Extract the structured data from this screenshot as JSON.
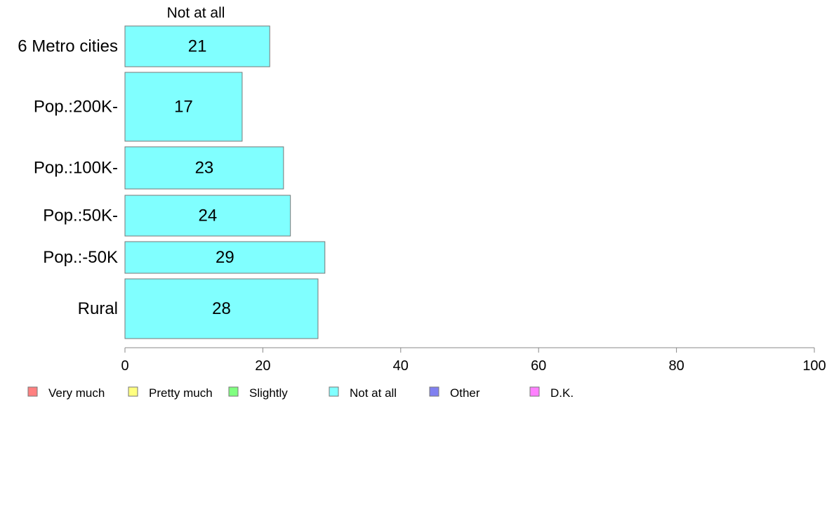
{
  "chart_data": {
    "type": "bar",
    "orientation": "horizontal",
    "stacked": true,
    "series_header": "Not at all",
    "categories": [
      "6 Metro cities",
      "Pop.:200K-",
      "Pop.:100K-",
      "Pop.:50K-",
      "Pop.:-50K",
      "Rural"
    ],
    "series": [
      {
        "name": "Very much",
        "values": [
          0,
          0,
          0,
          0,
          0,
          0
        ],
        "color": "#ff8080"
      },
      {
        "name": "Pretty much",
        "values": [
          0,
          0,
          0,
          0,
          0,
          0
        ],
        "color": "#ffff80"
      },
      {
        "name": "Slightly",
        "values": [
          0,
          0,
          0,
          0,
          0,
          0
        ],
        "color": "#80ff80"
      },
      {
        "name": "Not at all",
        "values": [
          21,
          17,
          23,
          24,
          29,
          28
        ],
        "color": "#80ffff"
      },
      {
        "name": "Other",
        "values": [
          0,
          0,
          0,
          0,
          0,
          0
        ],
        "color": "#8080f0"
      },
      {
        "name": "D.K.",
        "values": [
          0,
          0,
          0,
          0,
          0,
          0
        ],
        "color": "#ff80ff"
      }
    ],
    "data_labels": [
      "21",
      "17",
      "23",
      "24",
      "29",
      "28"
    ],
    "xlim": [
      0,
      100
    ],
    "xticks": [
      "0",
      "20",
      "40",
      "60",
      "80",
      "100"
    ],
    "grid": false,
    "legend_position": "bottom"
  }
}
